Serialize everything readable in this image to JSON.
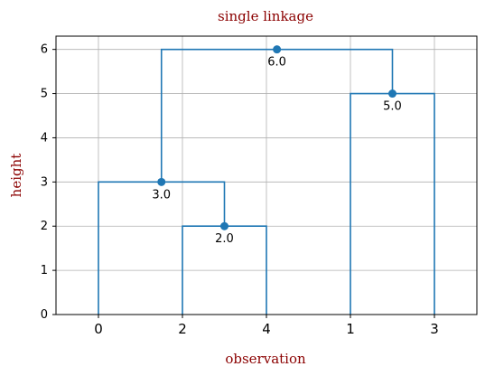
{
  "chart_data": {
    "type": "dendrogram",
    "title": "single linkage",
    "xlabel": "observation",
    "ylabel": "height",
    "leaf_order": [
      "0",
      "2",
      "4",
      "1",
      "3"
    ],
    "ylim": [
      0,
      6.3
    ],
    "yticks": [
      0,
      1,
      2,
      3,
      4,
      5,
      6
    ],
    "grid": true,
    "color": "#1f77b4",
    "merges": [
      {
        "left": "2",
        "right": "4",
        "height": 2.0,
        "label": "2.0"
      },
      {
        "left": "0",
        "right": "(2,4)",
        "height": 3.0,
        "label": "3.0"
      },
      {
        "left": "1",
        "right": "3",
        "height": 5.0,
        "label": "5.0"
      },
      {
        "left": "(0,2,4)",
        "right": "(1,3)",
        "height": 6.0,
        "label": "6.0"
      }
    ]
  }
}
